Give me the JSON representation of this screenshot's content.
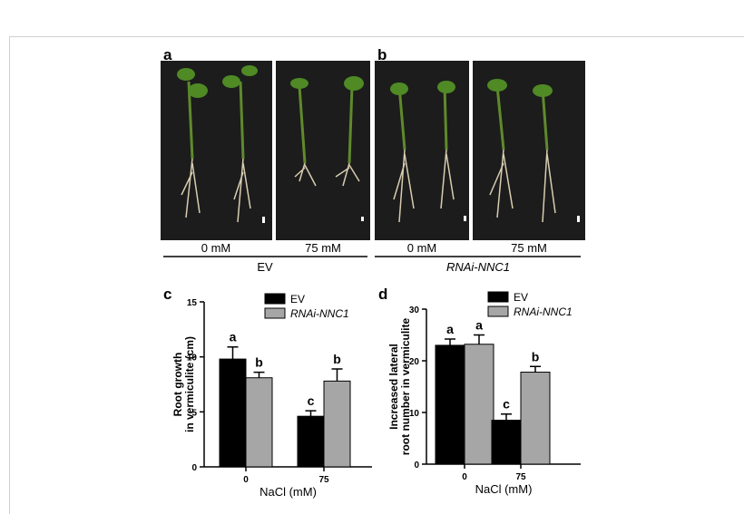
{
  "panels": {
    "a": {
      "label": "a",
      "conditions": [
        "0 mM",
        "75 mM"
      ],
      "group": "EV"
    },
    "b": {
      "label": "b",
      "conditions": [
        "0 mM",
        "75 mM"
      ],
      "group": "RNAi-NNC1"
    }
  },
  "chart_data": [
    {
      "type": "bar",
      "panel": "c",
      "categories": [
        "0",
        "75"
      ],
      "xlabel": "NaCl (mM)",
      "ylabel": [
        "Root growth",
        "in vermiculite (cm)"
      ],
      "ylim": [
        0,
        15
      ],
      "yticks": [
        0,
        5,
        10,
        15
      ],
      "series": [
        {
          "name": "EV",
          "color": "#000000",
          "values": [
            9.8,
            4.6
          ],
          "errors": [
            1.1,
            0.5
          ],
          "letters": [
            "a",
            "c"
          ]
        },
        {
          "name": "RNAi-NNC1",
          "color": "#a6a6a6",
          "values": [
            8.1,
            7.8
          ],
          "errors": [
            0.5,
            1.1
          ],
          "letters": [
            "b",
            "b"
          ]
        }
      ]
    },
    {
      "type": "bar",
      "panel": "d",
      "categories": [
        "0",
        "75"
      ],
      "xlabel": "NaCl (mM)",
      "ylabel": [
        "Increased lateral",
        "root number in vermiculite"
      ],
      "ylim": [
        0,
        30
      ],
      "yticks": [
        0,
        10,
        20,
        30
      ],
      "series": [
        {
          "name": "EV",
          "color": "#000000",
          "values": [
            23,
            8.5
          ],
          "errors": [
            1.2,
            1.2
          ],
          "letters": [
            "a",
            "c"
          ]
        },
        {
          "name": "RNAi-NNC1",
          "color": "#a6a6a6",
          "values": [
            23.2,
            17.8
          ],
          "errors": [
            1.8,
            1.1
          ],
          "letters": [
            "a",
            "b"
          ]
        }
      ]
    }
  ]
}
